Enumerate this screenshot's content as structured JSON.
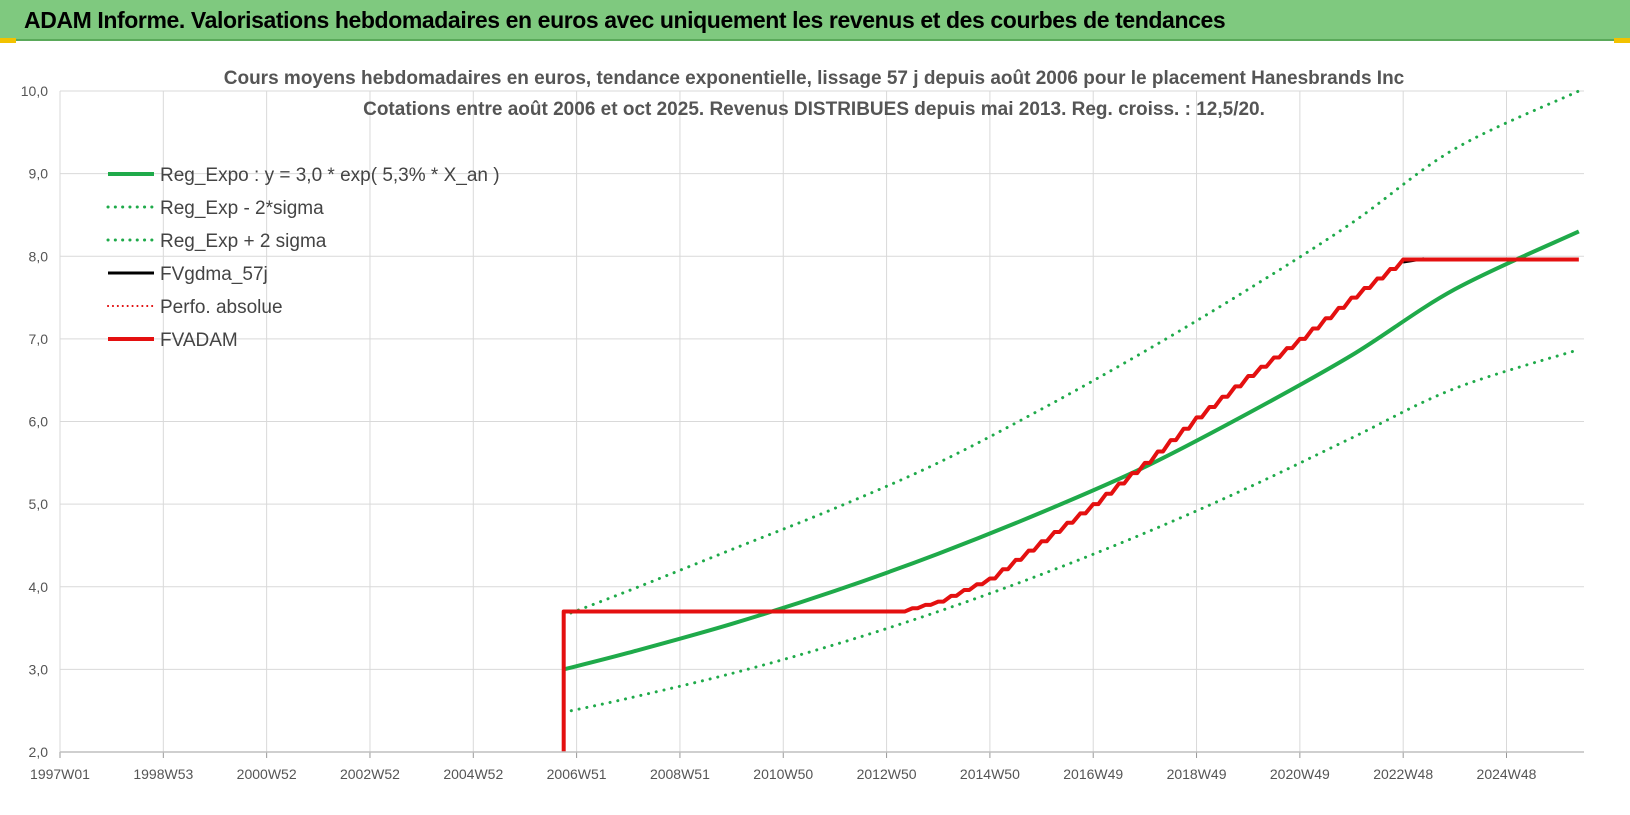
{
  "header": {
    "title": "ADAM Informe. Valorisations hebdomadaires en euros avec uniquement les revenus et des courbes de tendances"
  },
  "chart_data": {
    "type": "line",
    "title": "Cours moyens hebdomadaires en euros, tendance exponentielle, lissage 57 j depuis août 2006 pour le placement Hanesbrands Inc",
    "subtitle": "Cotations entre août 2006 et oct 2025.  Revenus DISTRIBUES depuis mai 2013. Reg. croiss. : 12,5/20.",
    "xlabel": "",
    "ylabel": "",
    "x_range": [
      1997.0,
      2026.5
    ],
    "ylim": [
      2.0,
      10.0
    ],
    "y_ticks": [
      "2,0",
      "3,0",
      "4,0",
      "5,0",
      "6,0",
      "7,0",
      "8,0",
      "9,0",
      "10,0"
    ],
    "x_ticks": [
      {
        "label": "1997W01",
        "x": 1997.0
      },
      {
        "label": "1998W53",
        "x": 1999.0
      },
      {
        "label": "2000W52",
        "x": 2001.0
      },
      {
        "label": "2002W52",
        "x": 2003.0
      },
      {
        "label": "2004W52",
        "x": 2005.0
      },
      {
        "label": "2006W51",
        "x": 2007.0
      },
      {
        "label": "2008W51",
        "x": 2009.0
      },
      {
        "label": "2010W50",
        "x": 2011.0
      },
      {
        "label": "2012W50",
        "x": 2013.0
      },
      {
        "label": "2014W50",
        "x": 2015.0
      },
      {
        "label": "2016W49",
        "x": 2017.0
      },
      {
        "label": "2018W49",
        "x": 2019.0
      },
      {
        "label": "2020W49",
        "x": 2021.0
      },
      {
        "label": "2022W48",
        "x": 2023.0
      },
      {
        "label": "2024W48",
        "x": 2025.0
      }
    ],
    "grid": true,
    "legend_position": "top-left",
    "series": [
      {
        "name": "Reg_Expo : y = 3,0 * exp( 5,3% *  X_an )",
        "color": "#1faa4a",
        "style": "solid",
        "width": 4,
        "points": [
          [
            2006.75,
            3.0
          ],
          [
            2008,
            3.2
          ],
          [
            2010,
            3.55
          ],
          [
            2012,
            3.95
          ],
          [
            2014,
            4.4
          ],
          [
            2016,
            4.9
          ],
          [
            2018,
            5.45
          ],
          [
            2020,
            6.1
          ],
          [
            2022,
            6.8
          ],
          [
            2024,
            7.6
          ],
          [
            2026.4,
            8.3
          ]
        ]
      },
      {
        "name": "Reg_Exp - 2*sigma",
        "color": "#1faa4a",
        "style": "dotted",
        "width": 3,
        "points": [
          [
            2006.75,
            2.48
          ],
          [
            2008,
            2.65
          ],
          [
            2010,
            2.95
          ],
          [
            2012,
            3.3
          ],
          [
            2014,
            3.7
          ],
          [
            2016,
            4.15
          ],
          [
            2018,
            4.65
          ],
          [
            2020,
            5.2
          ],
          [
            2022,
            5.8
          ],
          [
            2024,
            6.4
          ],
          [
            2026.4,
            6.87
          ]
        ]
      },
      {
        "name": "Reg_Exp + 2 sigma",
        "color": "#1faa4a",
        "style": "dotted",
        "width": 3,
        "points": [
          [
            2006.75,
            3.65
          ],
          [
            2008,
            3.95
          ],
          [
            2010,
            4.45
          ],
          [
            2012,
            4.95
          ],
          [
            2014,
            5.5
          ],
          [
            2016,
            6.15
          ],
          [
            2018,
            6.85
          ],
          [
            2020,
            7.6
          ],
          [
            2022,
            8.4
          ],
          [
            2024,
            9.3
          ],
          [
            2026.4,
            10.0
          ]
        ]
      },
      {
        "name": "FVgdma_57j",
        "color": "#000000",
        "style": "solid",
        "width": 3,
        "points": [
          [
            2023.0,
            7.93
          ],
          [
            2023.4,
            7.97
          ]
        ]
      },
      {
        "name": "Perfo. absolue",
        "color": "#e00000",
        "style": "dotted",
        "width": 2,
        "points": []
      },
      {
        "name": "FVADAM",
        "color": "#e41010",
        "style": "solid",
        "width": 4,
        "step": true,
        "points": [
          [
            2006.75,
            2.0
          ],
          [
            2006.75,
            3.7
          ],
          [
            2013.25,
            3.7
          ],
          [
            2014,
            3.82
          ],
          [
            2015,
            4.1
          ],
          [
            2016,
            4.55
          ],
          [
            2017,
            5.0
          ],
          [
            2018,
            5.5
          ],
          [
            2019,
            6.05
          ],
          [
            2020,
            6.55
          ],
          [
            2021,
            7.0
          ],
          [
            2022,
            7.5
          ],
          [
            2023,
            7.96
          ],
          [
            2026.4,
            7.96
          ]
        ]
      }
    ]
  }
}
